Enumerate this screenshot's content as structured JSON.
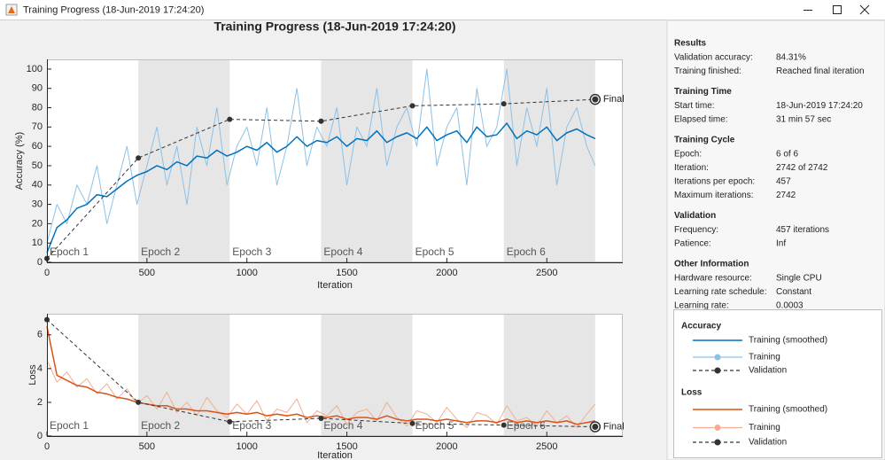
{
  "window": {
    "title": "Training Progress (18-Jun-2019 17:24:20)"
  },
  "figure_title": "Training Progress (18-Jun-2019 17:24:20)",
  "chart_data": [
    {
      "type": "line",
      "legend_title": "Accuracy",
      "x_label": "Iteration",
      "y_label": "Accuracy (%)",
      "xlim": [
        0,
        2880
      ],
      "xticks": [
        0,
        500,
        1000,
        1500,
        2000,
        2500
      ],
      "ylim": [
        0,
        105
      ],
      "yticks": [
        0,
        10,
        20,
        30,
        40,
        50,
        60,
        70,
        80,
        90,
        100
      ],
      "annotation": "Final",
      "epochs": [
        {
          "label": "Epoch 1",
          "start": 0,
          "end": 457,
          "shaded": false
        },
        {
          "label": "Epoch 2",
          "start": 457,
          "end": 914,
          "shaded": true
        },
        {
          "label": "Epoch 3",
          "start": 914,
          "end": 1371,
          "shaded": false
        },
        {
          "label": "Epoch 4",
          "start": 1371,
          "end": 1828,
          "shaded": true
        },
        {
          "label": "Epoch 5",
          "start": 1828,
          "end": 2285,
          "shaded": false
        },
        {
          "label": "Epoch 6",
          "start": 2285,
          "end": 2742,
          "shaded": true
        }
      ],
      "series": [
        {
          "name": "Training (smoothed)",
          "color": "#0072bd",
          "line_style": "solid",
          "marker": "none",
          "layer": 1,
          "x": [
            0,
            50,
            100,
            150,
            200,
            250,
            300,
            350,
            400,
            450,
            500,
            550,
            600,
            650,
            700,
            750,
            800,
            850,
            900,
            950,
            1000,
            1050,
            1100,
            1150,
            1200,
            1250,
            1300,
            1350,
            1400,
            1450,
            1500,
            1550,
            1600,
            1650,
            1700,
            1750,
            1800,
            1850,
            1900,
            1950,
            2000,
            2050,
            2100,
            2150,
            2200,
            2250,
            2300,
            2350,
            2400,
            2450,
            2500,
            2550,
            2600,
            2650,
            2700,
            2742
          ],
          "values": [
            5,
            18,
            22,
            28,
            30,
            35,
            34,
            38,
            42,
            45,
            47,
            50,
            48,
            52,
            50,
            55,
            54,
            58,
            55,
            57,
            60,
            58,
            62,
            57,
            60,
            65,
            60,
            63,
            62,
            65,
            60,
            64,
            63,
            68,
            62,
            65,
            67,
            64,
            70,
            63,
            66,
            68,
            62,
            70,
            65,
            66,
            72,
            64,
            68,
            66,
            70,
            63,
            67,
            69,
            66,
            64
          ]
        },
        {
          "name": "Training",
          "color": "#8cc1e6",
          "line_style": "solid",
          "marker": "o",
          "layer": 0,
          "x": [
            0,
            50,
            100,
            150,
            200,
            250,
            300,
            350,
            400,
            450,
            500,
            550,
            600,
            650,
            700,
            750,
            800,
            850,
            900,
            950,
            1000,
            1050,
            1100,
            1150,
            1200,
            1250,
            1300,
            1350,
            1400,
            1450,
            1500,
            1550,
            1600,
            1650,
            1700,
            1750,
            1800,
            1850,
            1900,
            1950,
            2000,
            2050,
            2100,
            2150,
            2200,
            2250,
            2300,
            2350,
            2400,
            2450,
            2500,
            2550,
            2600,
            2650,
            2700,
            2742
          ],
          "values": [
            10,
            30,
            20,
            40,
            30,
            50,
            20,
            40,
            60,
            30,
            50,
            70,
            40,
            60,
            30,
            70,
            50,
            80,
            40,
            60,
            70,
            50,
            80,
            40,
            60,
            90,
            50,
            70,
            60,
            80,
            40,
            70,
            60,
            90,
            50,
            70,
            80,
            60,
            100,
            50,
            70,
            80,
            40,
            90,
            60,
            70,
            100,
            50,
            80,
            60,
            90,
            40,
            70,
            80,
            60,
            50
          ]
        },
        {
          "name": "Validation",
          "color": "#333333",
          "line_style": "dashed",
          "marker": "o",
          "layer": 2,
          "x": [
            0,
            457,
            914,
            1371,
            1828,
            2285,
            2742
          ],
          "values": [
            2,
            54,
            74,
            73,
            81,
            82,
            84.31
          ]
        }
      ]
    },
    {
      "type": "line",
      "legend_title": "Loss",
      "x_label": "Iteration",
      "y_label": "Loss",
      "xlim": [
        0,
        2880
      ],
      "xticks": [
        0,
        500,
        1000,
        1500,
        2000,
        2500
      ],
      "ylim": [
        0,
        7.25
      ],
      "yticks": [
        0,
        2,
        4,
        6
      ],
      "annotation": "Final",
      "epochs": [
        {
          "label": "Epoch 1",
          "start": 0,
          "end": 457,
          "shaded": false
        },
        {
          "label": "Epoch 2",
          "start": 457,
          "end": 914,
          "shaded": true
        },
        {
          "label": "Epoch 3",
          "start": 914,
          "end": 1371,
          "shaded": false
        },
        {
          "label": "Epoch 4",
          "start": 1371,
          "end": 1828,
          "shaded": true
        },
        {
          "label": "Epoch 5",
          "start": 1828,
          "end": 2285,
          "shaded": false
        },
        {
          "label": "Epoch 6",
          "start": 2285,
          "end": 2742,
          "shaded": true
        }
      ],
      "series": [
        {
          "name": "Training (smoothed)",
          "color": "#d95319",
          "line_style": "solid",
          "marker": "none",
          "layer": 1,
          "x": [
            0,
            50,
            100,
            150,
            200,
            250,
            300,
            350,
            400,
            450,
            500,
            550,
            600,
            650,
            700,
            750,
            800,
            850,
            900,
            950,
            1000,
            1050,
            1100,
            1150,
            1200,
            1250,
            1300,
            1350,
            1400,
            1450,
            1500,
            1550,
            1600,
            1650,
            1700,
            1750,
            1800,
            1850,
            1900,
            1950,
            2000,
            2050,
            2100,
            2150,
            2200,
            2250,
            2300,
            2350,
            2400,
            2450,
            2500,
            2550,
            2600,
            2650,
            2700,
            2742
          ],
          "values": [
            6.5,
            3.6,
            3.3,
            3.0,
            2.9,
            2.6,
            2.5,
            2.3,
            2.2,
            2.0,
            1.9,
            1.8,
            1.8,
            1.6,
            1.6,
            1.5,
            1.5,
            1.4,
            1.3,
            1.4,
            1.3,
            1.4,
            1.2,
            1.3,
            1.2,
            1.3,
            1.1,
            1.2,
            1.1,
            1.2,
            1.0,
            1.1,
            1.1,
            1.0,
            1.2,
            1.0,
            0.9,
            1.0,
            1.0,
            0.9,
            1.0,
            0.9,
            0.8,
            0.9,
            0.9,
            0.8,
            1.0,
            0.8,
            0.9,
            0.8,
            0.9,
            0.8,
            0.9,
            0.7,
            0.8,
            0.9
          ]
        },
        {
          "name": "Training",
          "color": "#f2ae92",
          "line_style": "solid",
          "marker": "o",
          "layer": 0,
          "x": [
            0,
            50,
            100,
            150,
            200,
            250,
            300,
            350,
            400,
            450,
            500,
            550,
            600,
            650,
            700,
            750,
            800,
            850,
            900,
            950,
            1000,
            1050,
            1100,
            1150,
            1200,
            1250,
            1300,
            1350,
            1400,
            1450,
            1500,
            1550,
            1600,
            1650,
            1700,
            1750,
            1800,
            1850,
            1900,
            1950,
            2000,
            2050,
            2100,
            2150,
            2200,
            2250,
            2300,
            2350,
            2400,
            2450,
            2500,
            2550,
            2600,
            2650,
            2700,
            2742
          ],
          "values": [
            4.5,
            3.2,
            3.8,
            2.9,
            3.4,
            2.5,
            3.1,
            2.2,
            2.8,
            1.9,
            2.4,
            1.6,
            2.6,
            1.4,
            2.0,
            1.2,
            2.3,
            1.5,
            1.1,
            1.9,
            1.3,
            2.1,
            0.9,
            1.6,
            1.4,
            2.2,
            0.8,
            1.5,
            1.2,
            1.8,
            0.7,
            1.4,
            1.6,
            0.9,
            2.0,
            1.1,
            0.6,
            1.5,
            1.3,
            0.8,
            1.7,
            1.0,
            0.5,
            1.4,
            1.2,
            0.7,
            1.8,
            0.9,
            1.1,
            0.6,
            1.5,
            0.8,
            1.2,
            0.5,
            1.3,
            1.9
          ]
        },
        {
          "name": "Validation",
          "color": "#333333",
          "line_style": "dashed",
          "marker": "o",
          "layer": 2,
          "x": [
            0,
            457,
            914,
            1371,
            1828,
            2285,
            2742
          ],
          "values": [
            6.9,
            2.0,
            0.85,
            1.05,
            0.75,
            0.65,
            0.55
          ]
        }
      ]
    }
  ],
  "results_panel": {
    "sections": [
      {
        "heading": "Results",
        "rows": [
          [
            "Validation accuracy:",
            "84.31%"
          ],
          [
            "Training finished:",
            "Reached final iteration"
          ]
        ]
      },
      {
        "heading": "Training Time",
        "rows": [
          [
            "Start time:",
            "18-Jun-2019 17:24:20"
          ],
          [
            "Elapsed time:",
            "31 min 57 sec"
          ]
        ]
      },
      {
        "heading": "Training Cycle",
        "rows": [
          [
            "Epoch:",
            "6 of 6"
          ],
          [
            "Iteration:",
            "2742 of 2742"
          ],
          [
            "Iterations per epoch:",
            "457"
          ],
          [
            "Maximum iterations:",
            "2742"
          ]
        ]
      },
      {
        "heading": "Validation",
        "rows": [
          [
            "Frequency:",
            "457 iterations"
          ],
          [
            "Patience:",
            "Inf"
          ]
        ]
      },
      {
        "heading": "Other Information",
        "rows": [
          [
            "Hardware resource:",
            "Single CPU"
          ],
          [
            "Learning rate schedule:",
            "Constant"
          ],
          [
            "Learning rate:",
            "0.0003"
          ]
        ]
      }
    ]
  }
}
